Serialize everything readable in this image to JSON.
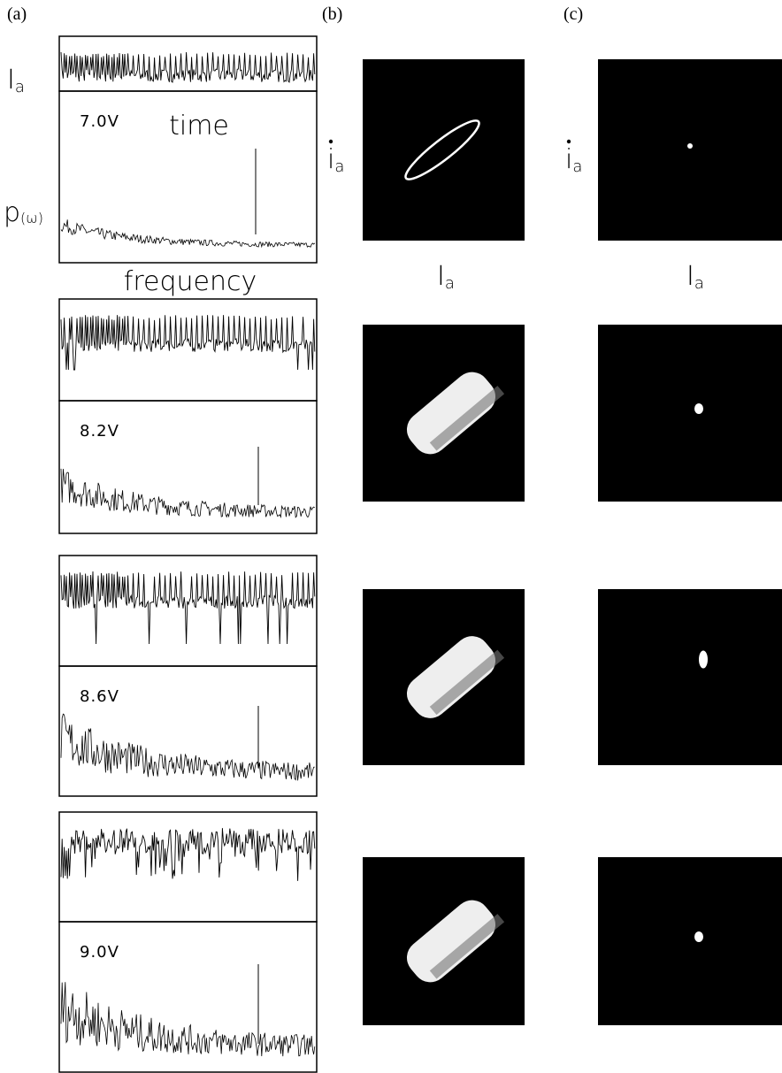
{
  "panel_labels": [
    "(a)",
    "(b)",
    "(c)"
  ],
  "column_a": {
    "signal_label": {
      "main": "I",
      "sub": "a"
    },
    "time_label": "time",
    "spectrum_label": {
      "main": "p",
      "sub": "(ω)"
    },
    "frequency_label": "frequency"
  },
  "column_b": {
    "y_label": {
      "main": "i",
      "sub": "a"
    },
    "x_label": {
      "main": "I",
      "sub": "a"
    }
  },
  "column_c": {
    "y_label": {
      "main": "i",
      "sub": "a"
    },
    "x_label": {
      "main": "I",
      "sub": "a"
    }
  },
  "rows": [
    {
      "voltage": "7.0V"
    },
    {
      "voltage": "8.2V"
    },
    {
      "voltage": "8.6V"
    },
    {
      "voltage": "9.0V"
    }
  ]
}
